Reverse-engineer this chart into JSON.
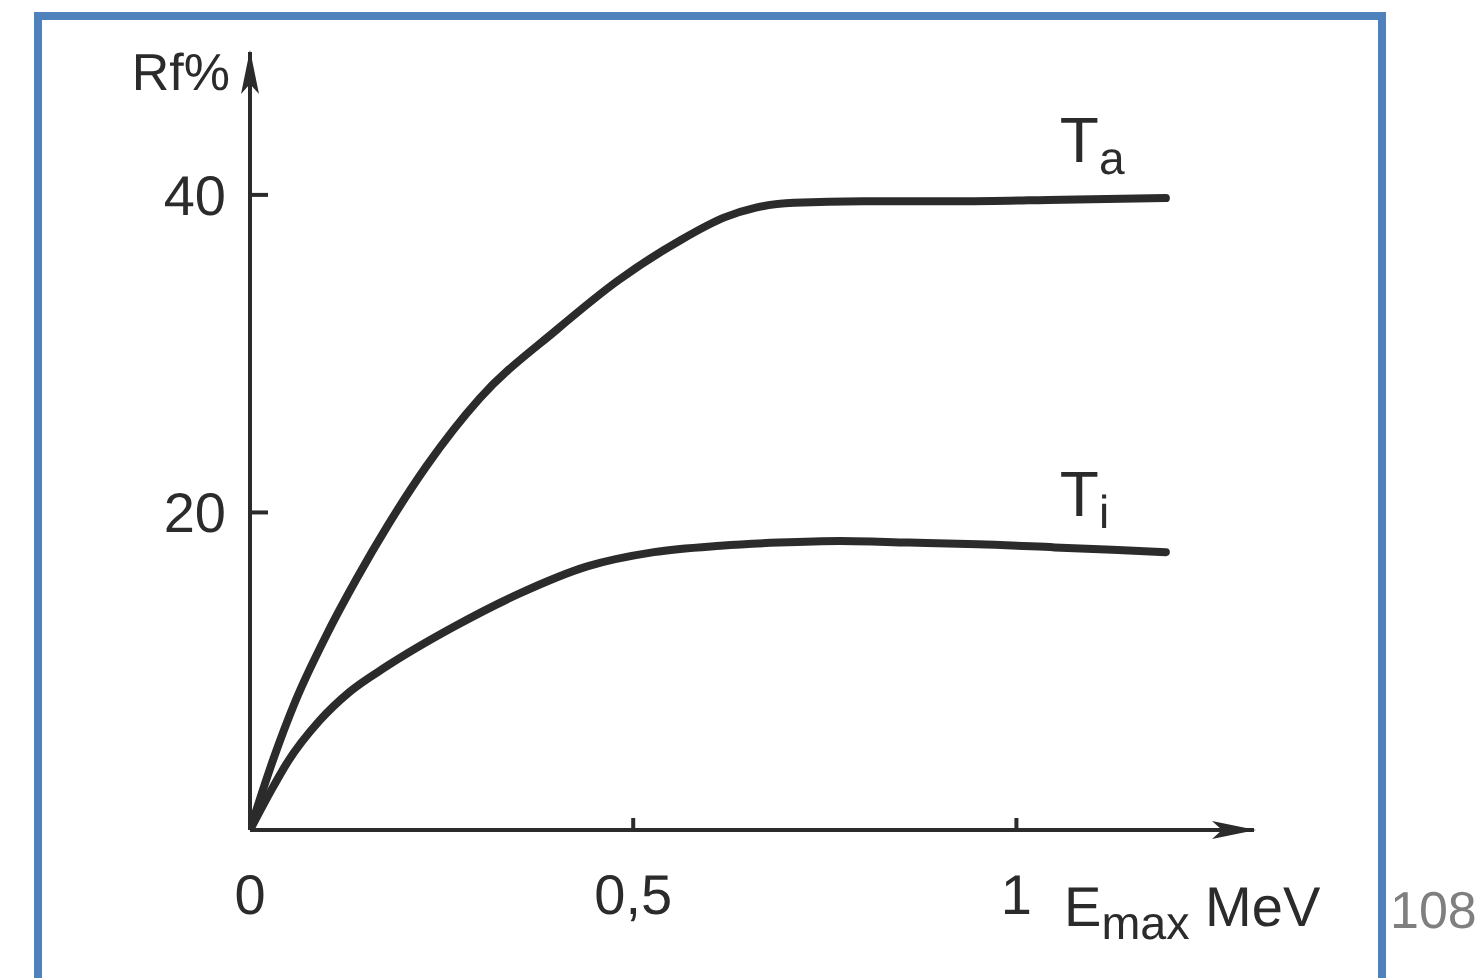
{
  "chart_data": {
    "type": "line",
    "xlabel": "E$_{max}$ MeV",
    "ylabel": "Rf%",
    "annotations": [
      "108"
    ],
    "xlim": [
      0,
      1.31
    ],
    "ylim": [
      0,
      49
    ],
    "xticks": [
      0,
      {
        "value": 0.5,
        "label": "0,5"
      },
      1
    ],
    "yticks": [
      20,
      40
    ],
    "series": [
      {
        "name": "T$_{a}$",
        "color": "#2b2b2b",
        "x": [
          0,
          0.03,
          0.06,
          0.1,
          0.14,
          0.18,
          0.23,
          0.3,
          0.4,
          0.48,
          0.56,
          0.62,
          0.66,
          0.71,
          0.8,
          0.93,
          1.06,
          1.195
        ],
        "values": [
          0,
          4.4,
          8.2,
          12.3,
          15.9,
          19.2,
          22.9,
          27.2,
          31.5,
          34.6,
          37.1,
          38.6,
          39.2,
          39.5,
          39.6,
          39.6,
          39.7,
          39.8
        ]
      },
      {
        "name": "T$_{i}$",
        "color": "#2b2b2b",
        "x": [
          0,
          0.03,
          0.048,
          0.091,
          0.13,
          0.178,
          0.266,
          0.352,
          0.44,
          0.527,
          0.614,
          0.69,
          0.77,
          0.86,
          0.95,
          1.05,
          1.195
        ],
        "values": [
          0,
          2.7,
          4.2,
          6.9,
          8.7,
          10.3,
          12.8,
          14.9,
          16.6,
          17.5,
          17.9,
          18.1,
          18.2,
          18.1,
          18.0,
          17.8,
          17.5
        ]
      }
    ],
    "grid": false,
    "marker": "none",
    "line_style": "solid"
  }
}
